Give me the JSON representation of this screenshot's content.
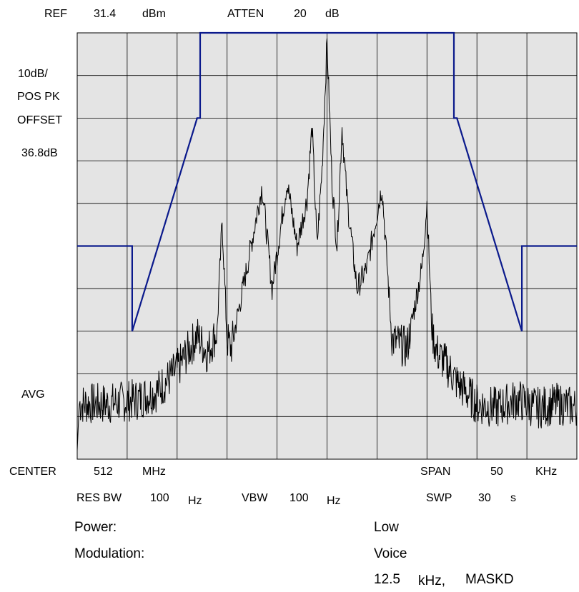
{
  "header": {
    "ref_label": "REF",
    "ref_value": "31.4",
    "ref_unit": "dBm",
    "atten_label": "ATTEN",
    "atten_value": "20",
    "atten_unit": "dB"
  },
  "left_panel": {
    "scale": "10dB/",
    "detector": "POS PK",
    "offset_label": "OFFSET",
    "offset_value": "36.8dB",
    "avg_label": "AVG"
  },
  "footer": {
    "center_label": "CENTER",
    "center_value": "512",
    "center_unit": "MHz",
    "span_label": "SPAN",
    "span_value": "50",
    "span_unit": "KHz",
    "resbw_label": "RES BW",
    "resbw_value": "100",
    "resbw_unit": "Hz",
    "vbw_label": "VBW",
    "vbw_value": "100",
    "vbw_unit": "Hz",
    "swp_label": "SWP",
    "swp_value": "30",
    "swp_unit": "s"
  },
  "info": {
    "power_label": "Power:",
    "power_value": "Low",
    "modulation_label": "Modulation:",
    "modulation_value": "Voice",
    "bandwidth_value": "12.5",
    "bandwidth_unit": "kHz,",
    "mask_label": "MASKD"
  },
  "chart_data": {
    "type": "line",
    "x_unit": "kHz offset from center",
    "y_unit": "dB relative to reference",
    "xlim": [
      -25,
      25
    ],
    "ylim": [
      -100,
      0
    ],
    "grid": true,
    "grid_divisions": {
      "x": 10,
      "y": 10
    },
    "colors": {
      "mask": "#0b1a8c",
      "trace": "#000000",
      "grid": "#000000",
      "background": "#e4e4e4"
    },
    "series": [
      {
        "x": [
          -25,
          -19.5,
          -19.5,
          -13,
          -12.7,
          -12.7,
          -5.2,
          -5.2,
          5.2,
          5.2,
          12.7,
          12.7,
          13,
          19.5,
          19.5,
          25
        ],
        "y": [
          -50,
          -50,
          -70,
          -20,
          -20,
          0,
          0,
          0,
          0,
          0,
          0,
          -20,
          -20,
          -70,
          -50,
          -50
        ]
      },
      {
        "x": [
          -25,
          -24.8,
          -22,
          -19,
          -17,
          -15,
          -13,
          -12,
          -11,
          -10.5,
          -10,
          -9.6,
          -8,
          -6.5,
          -5.5,
          -4,
          -3,
          -2,
          -1.5,
          -1,
          -0.5,
          0,
          0.5,
          1,
          1.5,
          2,
          3,
          4,
          5.5,
          6.5,
          8,
          9.5,
          10,
          10.5,
          11,
          12,
          13,
          15,
          17,
          19,
          21,
          23,
          25
        ],
        "y": [
          -98,
          -87,
          -87,
          -86,
          -84,
          -79,
          -71,
          -75,
          -70,
          -44,
          -72,
          -74,
          -55,
          -36,
          -60,
          -35,
          -50,
          -39,
          -22,
          -50,
          -32,
          -2,
          -35,
          -50,
          -22,
          -39,
          -60,
          -55,
          -36,
          -72,
          -74,
          -55,
          -40,
          -70,
          -75,
          -78,
          -82,
          -87,
          -88,
          -86,
          -88,
          -87,
          -88
        ]
      }
    ]
  }
}
